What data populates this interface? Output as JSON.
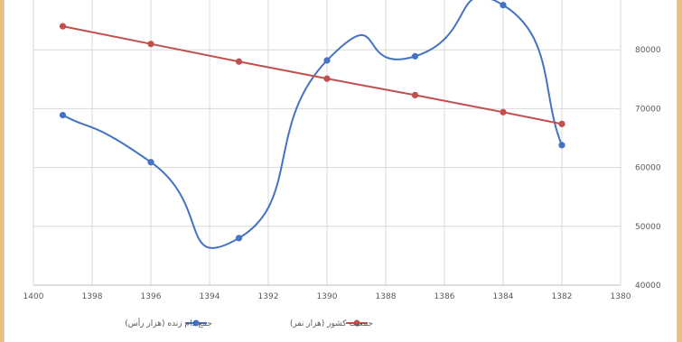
{
  "chart_data": {
    "type": "line",
    "x_reversed": true,
    "x_ticks": [
      1400,
      1398,
      1396,
      1394,
      1392,
      1390,
      1388,
      1386,
      1384,
      1382,
      1380
    ],
    "xlim": [
      1380,
      1400
    ],
    "y_ticks": [
      40000,
      50000,
      60000,
      70000,
      80000
    ],
    "ylim": [
      40000,
      90000
    ],
    "y_axis_side": "right",
    "grid": true,
    "legend_position": "bottom",
    "series": [
      {
        "name": "جمع دام زنده (هزار رأس)",
        "color": "#4472c4",
        "smooth": true,
        "x": [
          1399,
          1396,
          1393,
          1390,
          1387,
          1384,
          1382
        ],
        "y": [
          68900,
          60900,
          48000,
          78200,
          78900,
          87600,
          63800
        ]
      },
      {
        "name": "جمعیت کشور (هزار نفر)",
        "color": "#c0504d",
        "smooth": false,
        "x": [
          1399,
          1396,
          1393,
          1390,
          1387,
          1384,
          1382
        ],
        "y": [
          84000,
          81000,
          78000,
          75100,
          72300,
          69400,
          67400
        ]
      }
    ]
  }
}
